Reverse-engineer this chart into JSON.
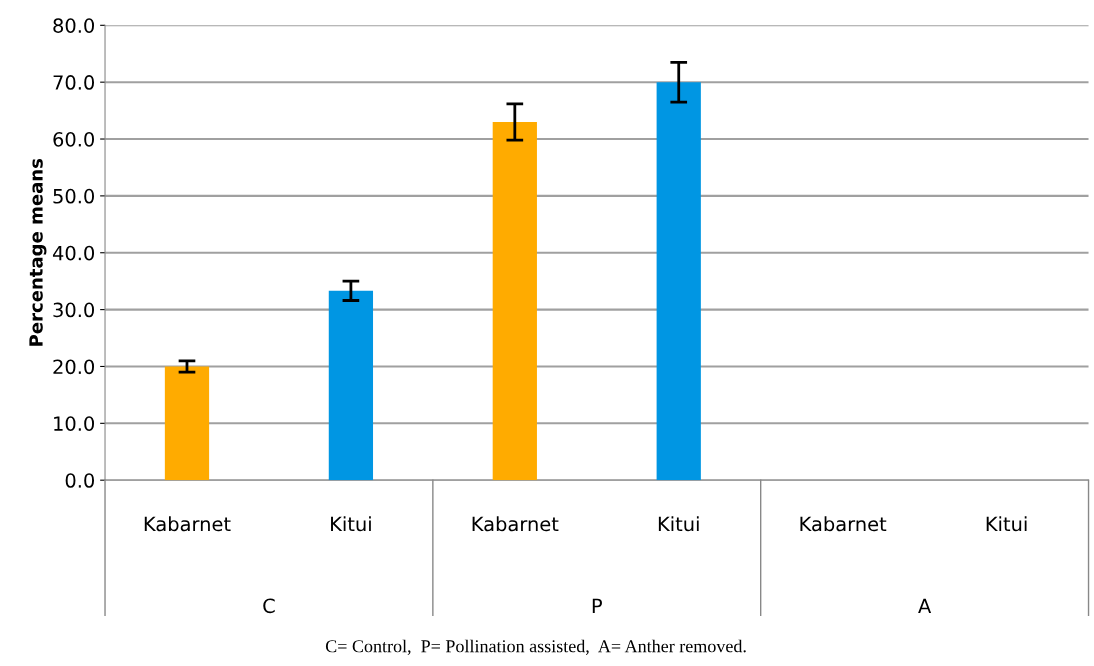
{
  "chart_data": {
    "type": "bar",
    "ylabel": "Percentage means",
    "categories": [
      "Kabarnet",
      "Kitui",
      "Kabarnet",
      "Kitui",
      "Kabarnet",
      "Kitui"
    ],
    "values": [
      20.0,
      33.3,
      63.0,
      70.0,
      0,
      0
    ],
    "errors": [
      1.0,
      1.7,
      3.2,
      3.5,
      null,
      null
    ],
    "colors": [
      "#ffab00",
      "#0096e3",
      "#ffab00",
      "#0096e3",
      "#ffab00",
      "#0096e3"
    ],
    "ylim": [
      0,
      80
    ],
    "yticks": [
      {
        "value": 0,
        "label": "0.0"
      },
      {
        "value": 10,
        "label": "10.0"
      },
      {
        "value": 20,
        "label": "20.0"
      },
      {
        "value": 30,
        "label": "30.0"
      },
      {
        "value": 40,
        "label": "40.0"
      },
      {
        "value": 50,
        "label": "50.0"
      },
      {
        "value": 60,
        "label": "60.0"
      },
      {
        "value": 70,
        "label": "70.0"
      },
      {
        "value": 80,
        "label": "80.0"
      }
    ],
    "grid": "y",
    "annotations": [
      "C",
      "P",
      "A",
      "C= Control,  P= Pollination assisted,  A= Anther removed."
    ]
  }
}
